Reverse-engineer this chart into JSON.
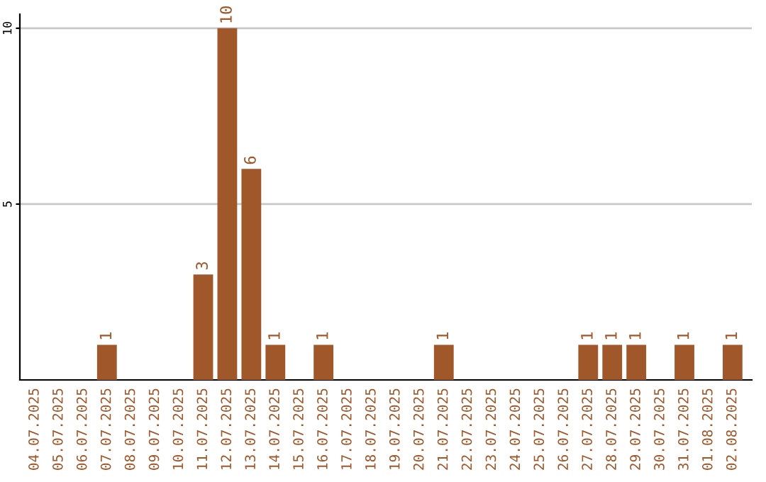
{
  "chart_data": {
    "type": "bar",
    "categories": [
      "04.07.2025",
      "05.07.2025",
      "06.07.2025",
      "07.07.2025",
      "08.07.2025",
      "09.07.2025",
      "10.07.2025",
      "11.07.2025",
      "12.07.2025",
      "13.07.2025",
      "14.07.2025",
      "15.07.2025",
      "16.07.2025",
      "17.07.2025",
      "18.07.2025",
      "19.07.2025",
      "20.07.2025",
      "21.07.2025",
      "22.07.2025",
      "23.07.2025",
      "24.07.2025",
      "25.07.2025",
      "26.07.2025",
      "27.07.2025",
      "28.07.2025",
      "29.07.2025",
      "30.07.2025",
      "31.07.2025",
      "01.08.2025",
      "02.08.2025"
    ],
    "values": [
      0,
      0,
      0,
      1,
      0,
      0,
      0,
      3,
      10,
      6,
      1,
      0,
      1,
      0,
      0,
      0,
      0,
      1,
      0,
      0,
      0,
      0,
      0,
      1,
      1,
      1,
      0,
      1,
      0,
      1
    ],
    "value_labels": [
      null,
      null,
      null,
      "1",
      null,
      null,
      null,
      "3",
      "10",
      "6",
      "1",
      null,
      "1",
      null,
      null,
      null,
      null,
      "1",
      null,
      null,
      null,
      null,
      null,
      "1",
      "1",
      "1",
      null,
      "1",
      null,
      "1"
    ],
    "color": "#a0572a",
    "ylim": [
      0,
      10.4
    ],
    "yticks": [
      5,
      10
    ],
    "grid": "y",
    "legend": false
  }
}
